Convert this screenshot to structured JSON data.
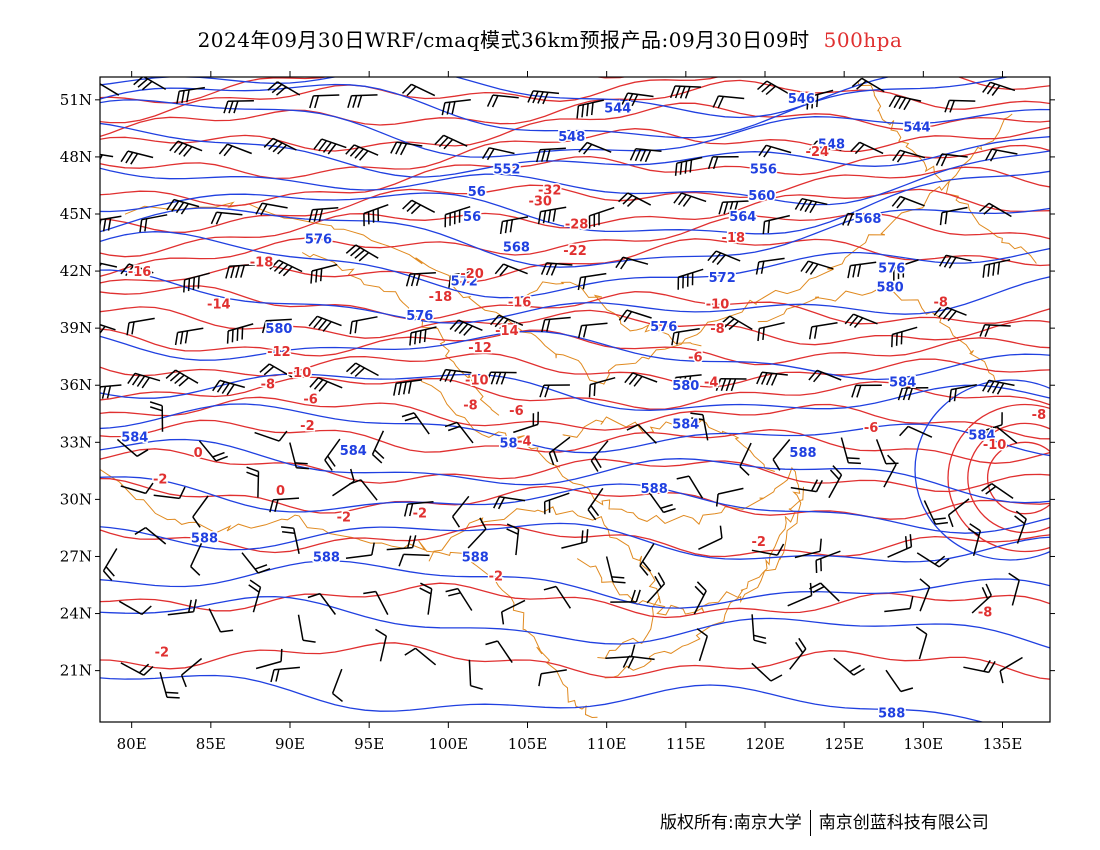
{
  "header": {
    "title": "2024年09月30日WRF/cmaq模式36km预报产品:09月30日09时",
    "level": "500hpa"
  },
  "footer": {
    "owner": "版权所有:南京大学",
    "company": "南京创蓝科技有限公司"
  },
  "axes": {
    "lat_labels": [
      "51N",
      "48N",
      "45N",
      "42N",
      "39N",
      "36N",
      "33N",
      "30N",
      "27N",
      "24N",
      "21N"
    ],
    "lat_values": [
      51,
      48,
      45,
      42,
      39,
      36,
      33,
      30,
      27,
      24,
      21
    ],
    "lon_labels": [
      "80E",
      "85E",
      "90E",
      "95E",
      "100E",
      "105E",
      "110E",
      "115E",
      "120E",
      "125E",
      "130E",
      "135E"
    ],
    "lon_values": [
      80,
      85,
      90,
      95,
      100,
      105,
      110,
      115,
      120,
      125,
      130,
      135
    ],
    "lon_range": [
      78,
      138
    ],
    "lat_range": [
      18.3,
      52.2
    ]
  },
  "colors": {
    "height_contour": "#2040e0",
    "temperature_contour": "#e03030",
    "border": "#e08a20",
    "wind_barb": "#000000"
  },
  "contours": {
    "height_labels": [
      {
        "text": "544",
        "lon": 110.7,
        "lat": 50.6
      },
      {
        "text": "546",
        "lon": 122.3,
        "lat": 51.1
      },
      {
        "text": "544",
        "lon": 129.6,
        "lat": 49.6
      },
      {
        "text": "548",
        "lon": 107.8,
        "lat": 49.1
      },
      {
        "text": "548",
        "lon": 124.2,
        "lat": 48.7
      },
      {
        "text": "552",
        "lon": 103.7,
        "lat": 47.4
      },
      {
        "text": "556",
        "lon": 119.9,
        "lat": 47.4
      },
      {
        "text": "56",
        "lon": 101.8,
        "lat": 46.2
      },
      {
        "text": "560",
        "lon": 119.8,
        "lat": 46.0
      },
      {
        "text": "56",
        "lon": 101.5,
        "lat": 44.9
      },
      {
        "text": "564",
        "lon": 118.6,
        "lat": 44.9
      },
      {
        "text": "568",
        "lon": 126.5,
        "lat": 44.8
      },
      {
        "text": "568",
        "lon": 104.3,
        "lat": 43.3
      },
      {
        "text": "576",
        "lon": 91.8,
        "lat": 43.7
      },
      {
        "text": "572",
        "lon": 101.0,
        "lat": 41.5
      },
      {
        "text": "572",
        "lon": 117.3,
        "lat": 41.7
      },
      {
        "text": "576",
        "lon": 128.0,
        "lat": 42.2
      },
      {
        "text": "580",
        "lon": 127.9,
        "lat": 41.2
      },
      {
        "text": "576",
        "lon": 98.2,
        "lat": 39.7
      },
      {
        "text": "576",
        "lon": 113.6,
        "lat": 39.1
      },
      {
        "text": "580",
        "lon": 89.3,
        "lat": 39.0
      },
      {
        "text": "580",
        "lon": 115.0,
        "lat": 36.0
      },
      {
        "text": "584",
        "lon": 128.7,
        "lat": 36.2
      },
      {
        "text": "584",
        "lon": 115.0,
        "lat": 34.0
      },
      {
        "text": "584",
        "lon": 80.2,
        "lat": 33.3
      },
      {
        "text": "584",
        "lon": 94.0,
        "lat": 32.6
      },
      {
        "text": "58",
        "lon": 103.8,
        "lat": 33.0
      },
      {
        "text": "584",
        "lon": 133.7,
        "lat": 33.4
      },
      {
        "text": "588",
        "lon": 122.4,
        "lat": 32.5
      },
      {
        "text": "588",
        "lon": 113.0,
        "lat": 30.6
      },
      {
        "text": "588",
        "lon": 84.6,
        "lat": 28.0
      },
      {
        "text": "588",
        "lon": 92.3,
        "lat": 27.0
      },
      {
        "text": "588",
        "lon": 101.7,
        "lat": 27.0
      },
      {
        "text": "588",
        "lon": 128.0,
        "lat": 18.8
      }
    ],
    "temperature_labels": [
      {
        "text": "-32",
        "lon": 106.4,
        "lat": 46.3
      },
      {
        "text": "-30",
        "lon": 105.8,
        "lat": 45.7
      },
      {
        "text": "-24",
        "lon": 123.3,
        "lat": 48.3
      },
      {
        "text": "-28",
        "lon": 108.1,
        "lat": 44.5
      },
      {
        "text": "-22",
        "lon": 108.0,
        "lat": 43.1
      },
      {
        "text": "-18",
        "lon": 118.0,
        "lat": 43.8
      },
      {
        "text": "-16",
        "lon": 80.5,
        "lat": 42.0
      },
      {
        "text": "-18",
        "lon": 88.2,
        "lat": 42.5
      },
      {
        "text": "-20",
        "lon": 101.5,
        "lat": 41.9
      },
      {
        "text": "-18",
        "lon": 99.5,
        "lat": 40.7
      },
      {
        "text": "-16",
        "lon": 104.5,
        "lat": 40.4
      },
      {
        "text": "-14",
        "lon": 85.5,
        "lat": 40.3
      },
      {
        "text": "-14",
        "lon": 103.7,
        "lat": 38.9
      },
      {
        "text": "-12",
        "lon": 102.0,
        "lat": 38.0
      },
      {
        "text": "-12",
        "lon": 89.3,
        "lat": 37.8
      },
      {
        "text": "-10",
        "lon": 117.0,
        "lat": 40.3
      },
      {
        "text": "-8",
        "lon": 117.0,
        "lat": 39.0
      },
      {
        "text": "-8",
        "lon": 131.1,
        "lat": 40.4
      },
      {
        "text": "-6",
        "lon": 115.6,
        "lat": 37.5
      },
      {
        "text": "-10",
        "lon": 90.6,
        "lat": 36.7
      },
      {
        "text": "-10",
        "lon": 101.8,
        "lat": 36.3
      },
      {
        "text": "-8",
        "lon": 88.6,
        "lat": 36.1
      },
      {
        "text": "-6",
        "lon": 91.3,
        "lat": 35.3
      },
      {
        "text": "-8",
        "lon": 101.4,
        "lat": 35.0
      },
      {
        "text": "-6",
        "lon": 104.3,
        "lat": 34.7
      },
      {
        "text": "-4",
        "lon": 116.6,
        "lat": 36.2
      },
      {
        "text": "-2",
        "lon": 91.1,
        "lat": 33.9
      },
      {
        "text": "-4",
        "lon": 104.8,
        "lat": 33.1
      },
      {
        "text": "-6",
        "lon": 126.7,
        "lat": 33.8
      },
      {
        "text": "-8",
        "lon": 137.3,
        "lat": 34.5
      },
      {
        "text": "-10",
        "lon": 134.5,
        "lat": 32.9
      },
      {
        "text": "0",
        "lon": 84.2,
        "lat": 32.5
      },
      {
        "text": "-2",
        "lon": 81.8,
        "lat": 31.1
      },
      {
        "text": "0",
        "lon": 89.4,
        "lat": 30.5
      },
      {
        "text": "-2",
        "lon": 93.4,
        "lat": 29.1
      },
      {
        "text": "-2",
        "lon": 98.2,
        "lat": 29.3
      },
      {
        "text": "-2",
        "lon": 119.6,
        "lat": 27.8
      },
      {
        "text": "-2",
        "lon": 103.0,
        "lat": 26.0
      },
      {
        "text": "-2",
        "lon": 81.9,
        "lat": 22.0
      },
      {
        "text": "-8",
        "lon": 133.9,
        "lat": 24.1
      }
    ]
  }
}
